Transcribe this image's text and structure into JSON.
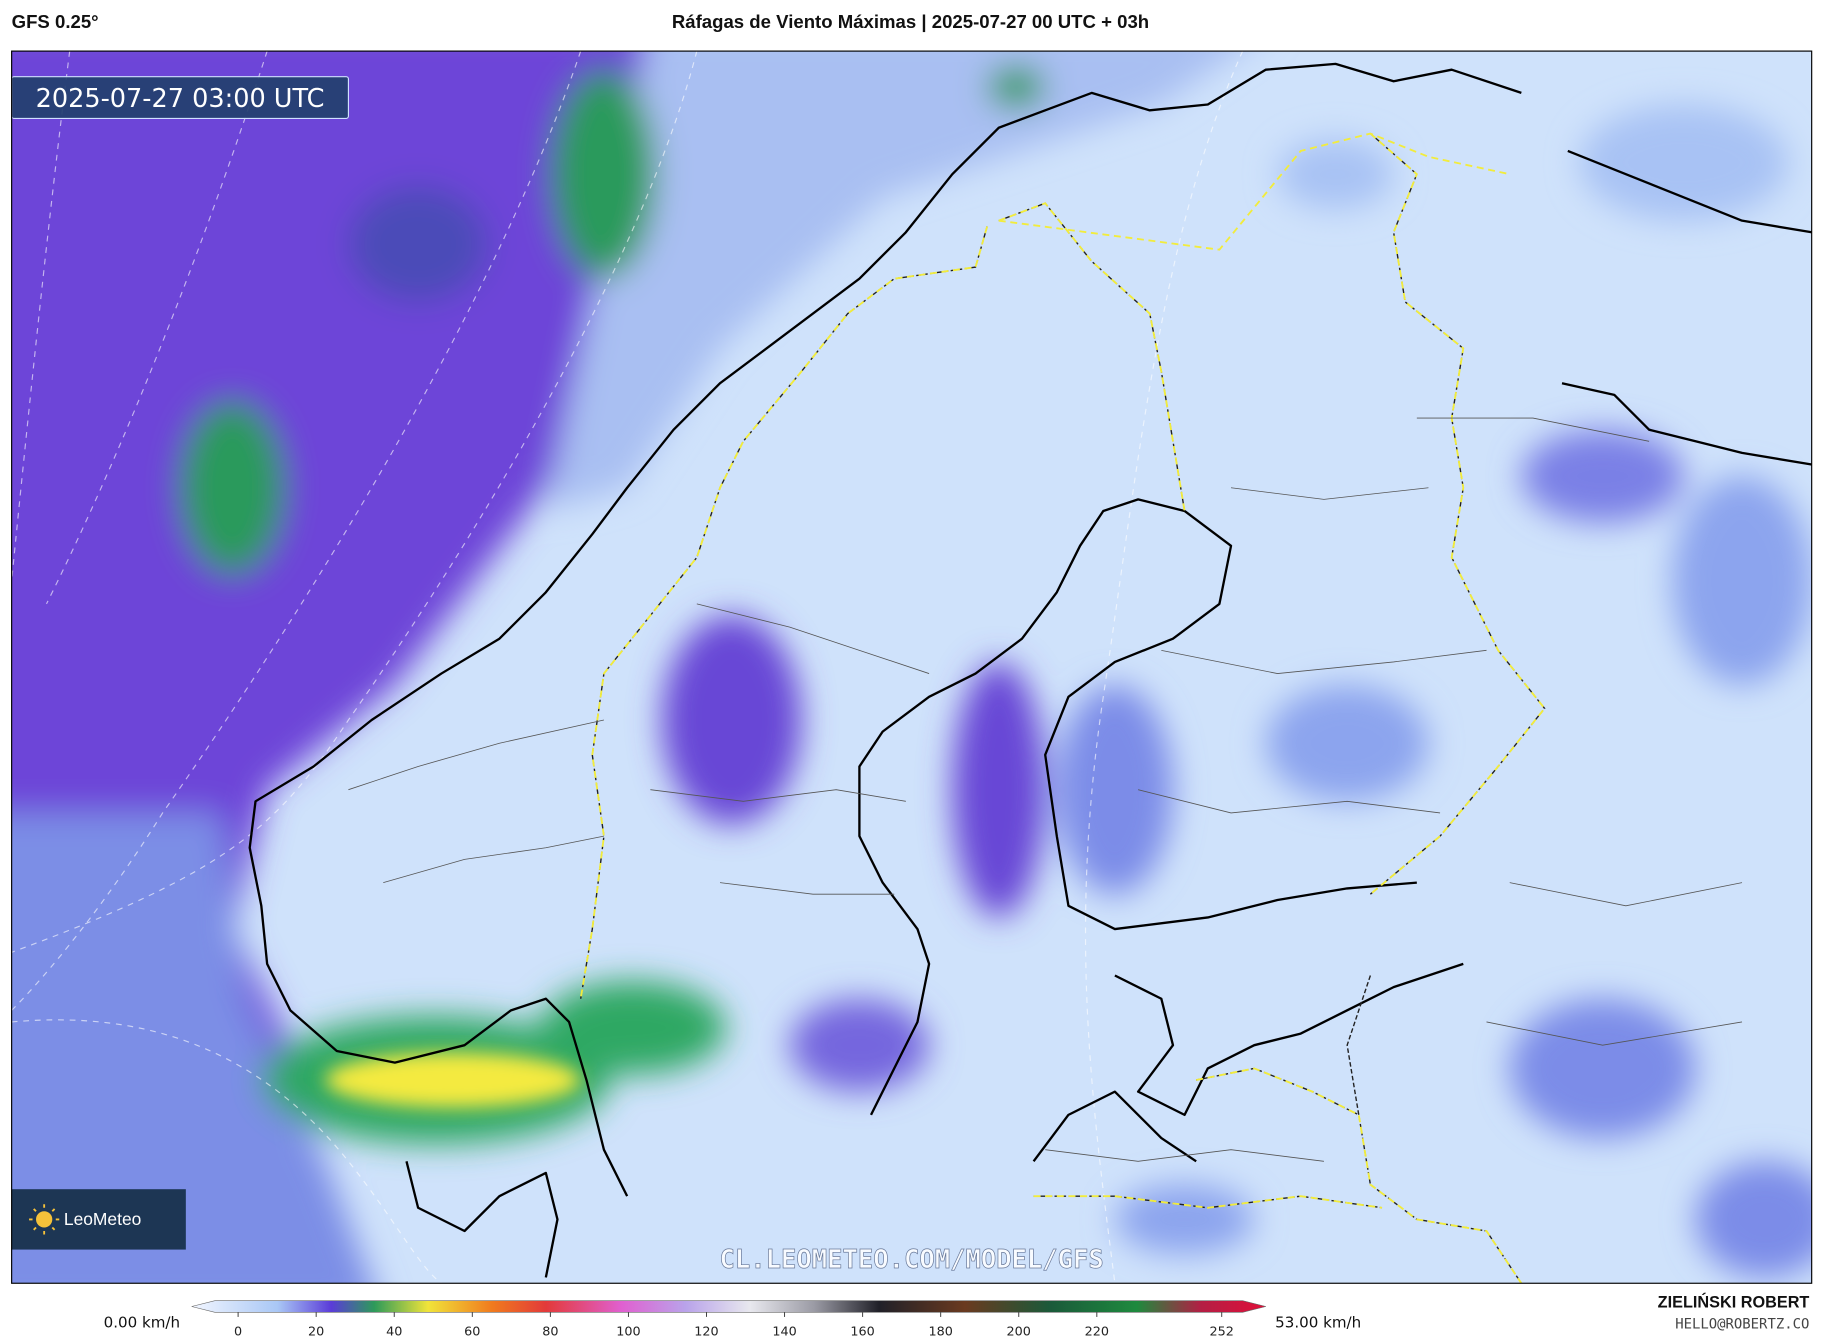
{
  "header": {
    "model": "GFS 0.25°",
    "title": "Ráfagas de Viento Máximas | 2025-07-27 00 UTC + 03h"
  },
  "map": {
    "timestamp": "2025-07-27 03:00 UTC",
    "watermark": "CL.LEOMETEO.COM/MODEL/GFS",
    "logo": "LeoMeteo"
  },
  "colorbar": {
    "min_label": "0.00 km/h",
    "max_label": "53.00 km/h",
    "ticks": [
      0,
      20,
      40,
      60,
      80,
      100,
      120,
      140,
      160,
      180,
      200,
      220,
      252
    ]
  },
  "credit": {
    "author": "ZIELIŃSKI ROBERT",
    "contact": "HELLO@ROBERTZ.CO"
  }
}
